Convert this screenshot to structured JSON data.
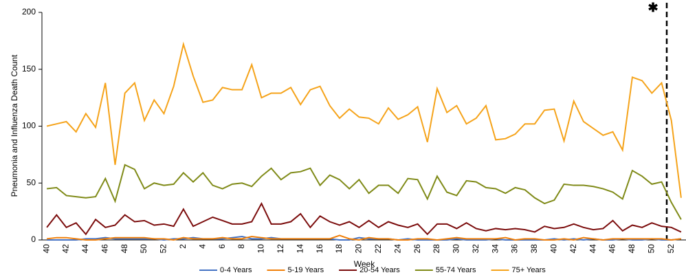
{
  "chart_data": {
    "type": "line",
    "y_label": "Pneumonia and Influenza Death Count",
    "x_label": "Week",
    "annotation": "✱",
    "categories": [
      "40",
      null,
      "42",
      null,
      "44",
      null,
      "46",
      null,
      "48",
      null,
      "50",
      null,
      "52",
      null,
      "2",
      null,
      "4",
      null,
      "6",
      null,
      "8",
      null,
      "10",
      null,
      "12",
      null,
      "14",
      null,
      "16",
      null,
      "18",
      null,
      "20",
      null,
      "22",
      null,
      "24",
      null,
      "26",
      null,
      "28",
      null,
      "30",
      null,
      "32",
      null,
      "34",
      null,
      "36",
      null,
      "38",
      null,
      "40",
      null,
      "42",
      null,
      "44",
      null,
      "46",
      null,
      "48",
      null,
      "50",
      null,
      "52",
      null
    ],
    "series": [
      {
        "name": "0-4 Years",
        "color": "#4472c4",
        "values": [
          0,
          0,
          0,
          0,
          1,
          1,
          2,
          1,
          1,
          1,
          1,
          1,
          0,
          1,
          1,
          2,
          1,
          1,
          1,
          2,
          3,
          1,
          1,
          2,
          1,
          1,
          1,
          1,
          1,
          1,
          0,
          0,
          2,
          1,
          1,
          1,
          0,
          1,
          0,
          0,
          0,
          0,
          1,
          0,
          0,
          0,
          1,
          0,
          0,
          0,
          0,
          0,
          1,
          0,
          1,
          0,
          1,
          0,
          0,
          1,
          0,
          0,
          1,
          0,
          0,
          1
        ]
      },
      {
        "name": "5-19 Years",
        "color": "#f07f09",
        "values": [
          1,
          2,
          2,
          1,
          0,
          0,
          1,
          2,
          2,
          2,
          2,
          1,
          1,
          0,
          2,
          1,
          1,
          1,
          2,
          1,
          1,
          3,
          2,
          1,
          1,
          1,
          1,
          1,
          1,
          1,
          4,
          1,
          0,
          2,
          1,
          1,
          0,
          0,
          1,
          1,
          0,
          1,
          2,
          1,
          1,
          1,
          1,
          2,
          0,
          1,
          1,
          0,
          0,
          1,
          0,
          2,
          1,
          0,
          1,
          1,
          1,
          1,
          1,
          1,
          0,
          1
        ]
      },
      {
        "name": "20-54 Years",
        "color": "#7b0c0c",
        "values": [
          11,
          22,
          11,
          15,
          5,
          18,
          11,
          13,
          22,
          16,
          17,
          13,
          14,
          12,
          27,
          12,
          16,
          20,
          17,
          14,
          14,
          16,
          32,
          14,
          14,
          16,
          23,
          11,
          21,
          16,
          13,
          16,
          11,
          17,
          11,
          16,
          13,
          11,
          14,
          5,
          14,
          14,
          10,
          15,
          10,
          8,
          10,
          9,
          10,
          9,
          7,
          12,
          10,
          11,
          14,
          11,
          9,
          10,
          17,
          8,
          13,
          11,
          15,
          12,
          11,
          7
        ]
      },
      {
        "name": "55-74 Years",
        "color": "#7f8a17",
        "values": [
          45,
          46,
          39,
          38,
          37,
          38,
          54,
          34,
          66,
          62,
          45,
          50,
          48,
          49,
          59,
          51,
          59,
          48,
          45,
          49,
          50,
          47,
          56,
          63,
          53,
          59,
          60,
          63,
          48,
          57,
          53,
          45,
          53,
          41,
          48,
          48,
          41,
          54,
          53,
          36,
          56,
          42,
          39,
          52,
          51,
          46,
          45,
          41,
          46,
          44,
          37,
          32,
          35,
          49,
          48,
          48,
          47,
          45,
          42,
          36,
          61,
          56,
          49,
          51,
          33,
          18
        ]
      },
      {
        "name": "75+ Years",
        "color": "#f5a31a",
        "values": [
          100,
          102,
          104,
          95,
          111,
          99,
          138,
          66,
          129,
          138,
          105,
          123,
          111,
          135,
          172,
          144,
          121,
          123,
          134,
          132,
          132,
          154,
          125,
          129,
          129,
          134,
          119,
          132,
          135,
          118,
          107,
          115,
          108,
          107,
          102,
          116,
          106,
          110,
          117,
          86,
          133,
          112,
          118,
          102,
          107,
          118,
          88,
          89,
          93,
          102,
          102,
          114,
          115,
          87,
          122,
          104,
          98,
          92,
          95,
          79,
          143,
          140,
          129,
          138,
          105,
          37
        ]
      }
    ],
    "ylim": [
      0,
      200
    ],
    "yticks": [
      0,
      50,
      100,
      150,
      200
    ],
    "grid": false,
    "legend": "bottom"
  }
}
